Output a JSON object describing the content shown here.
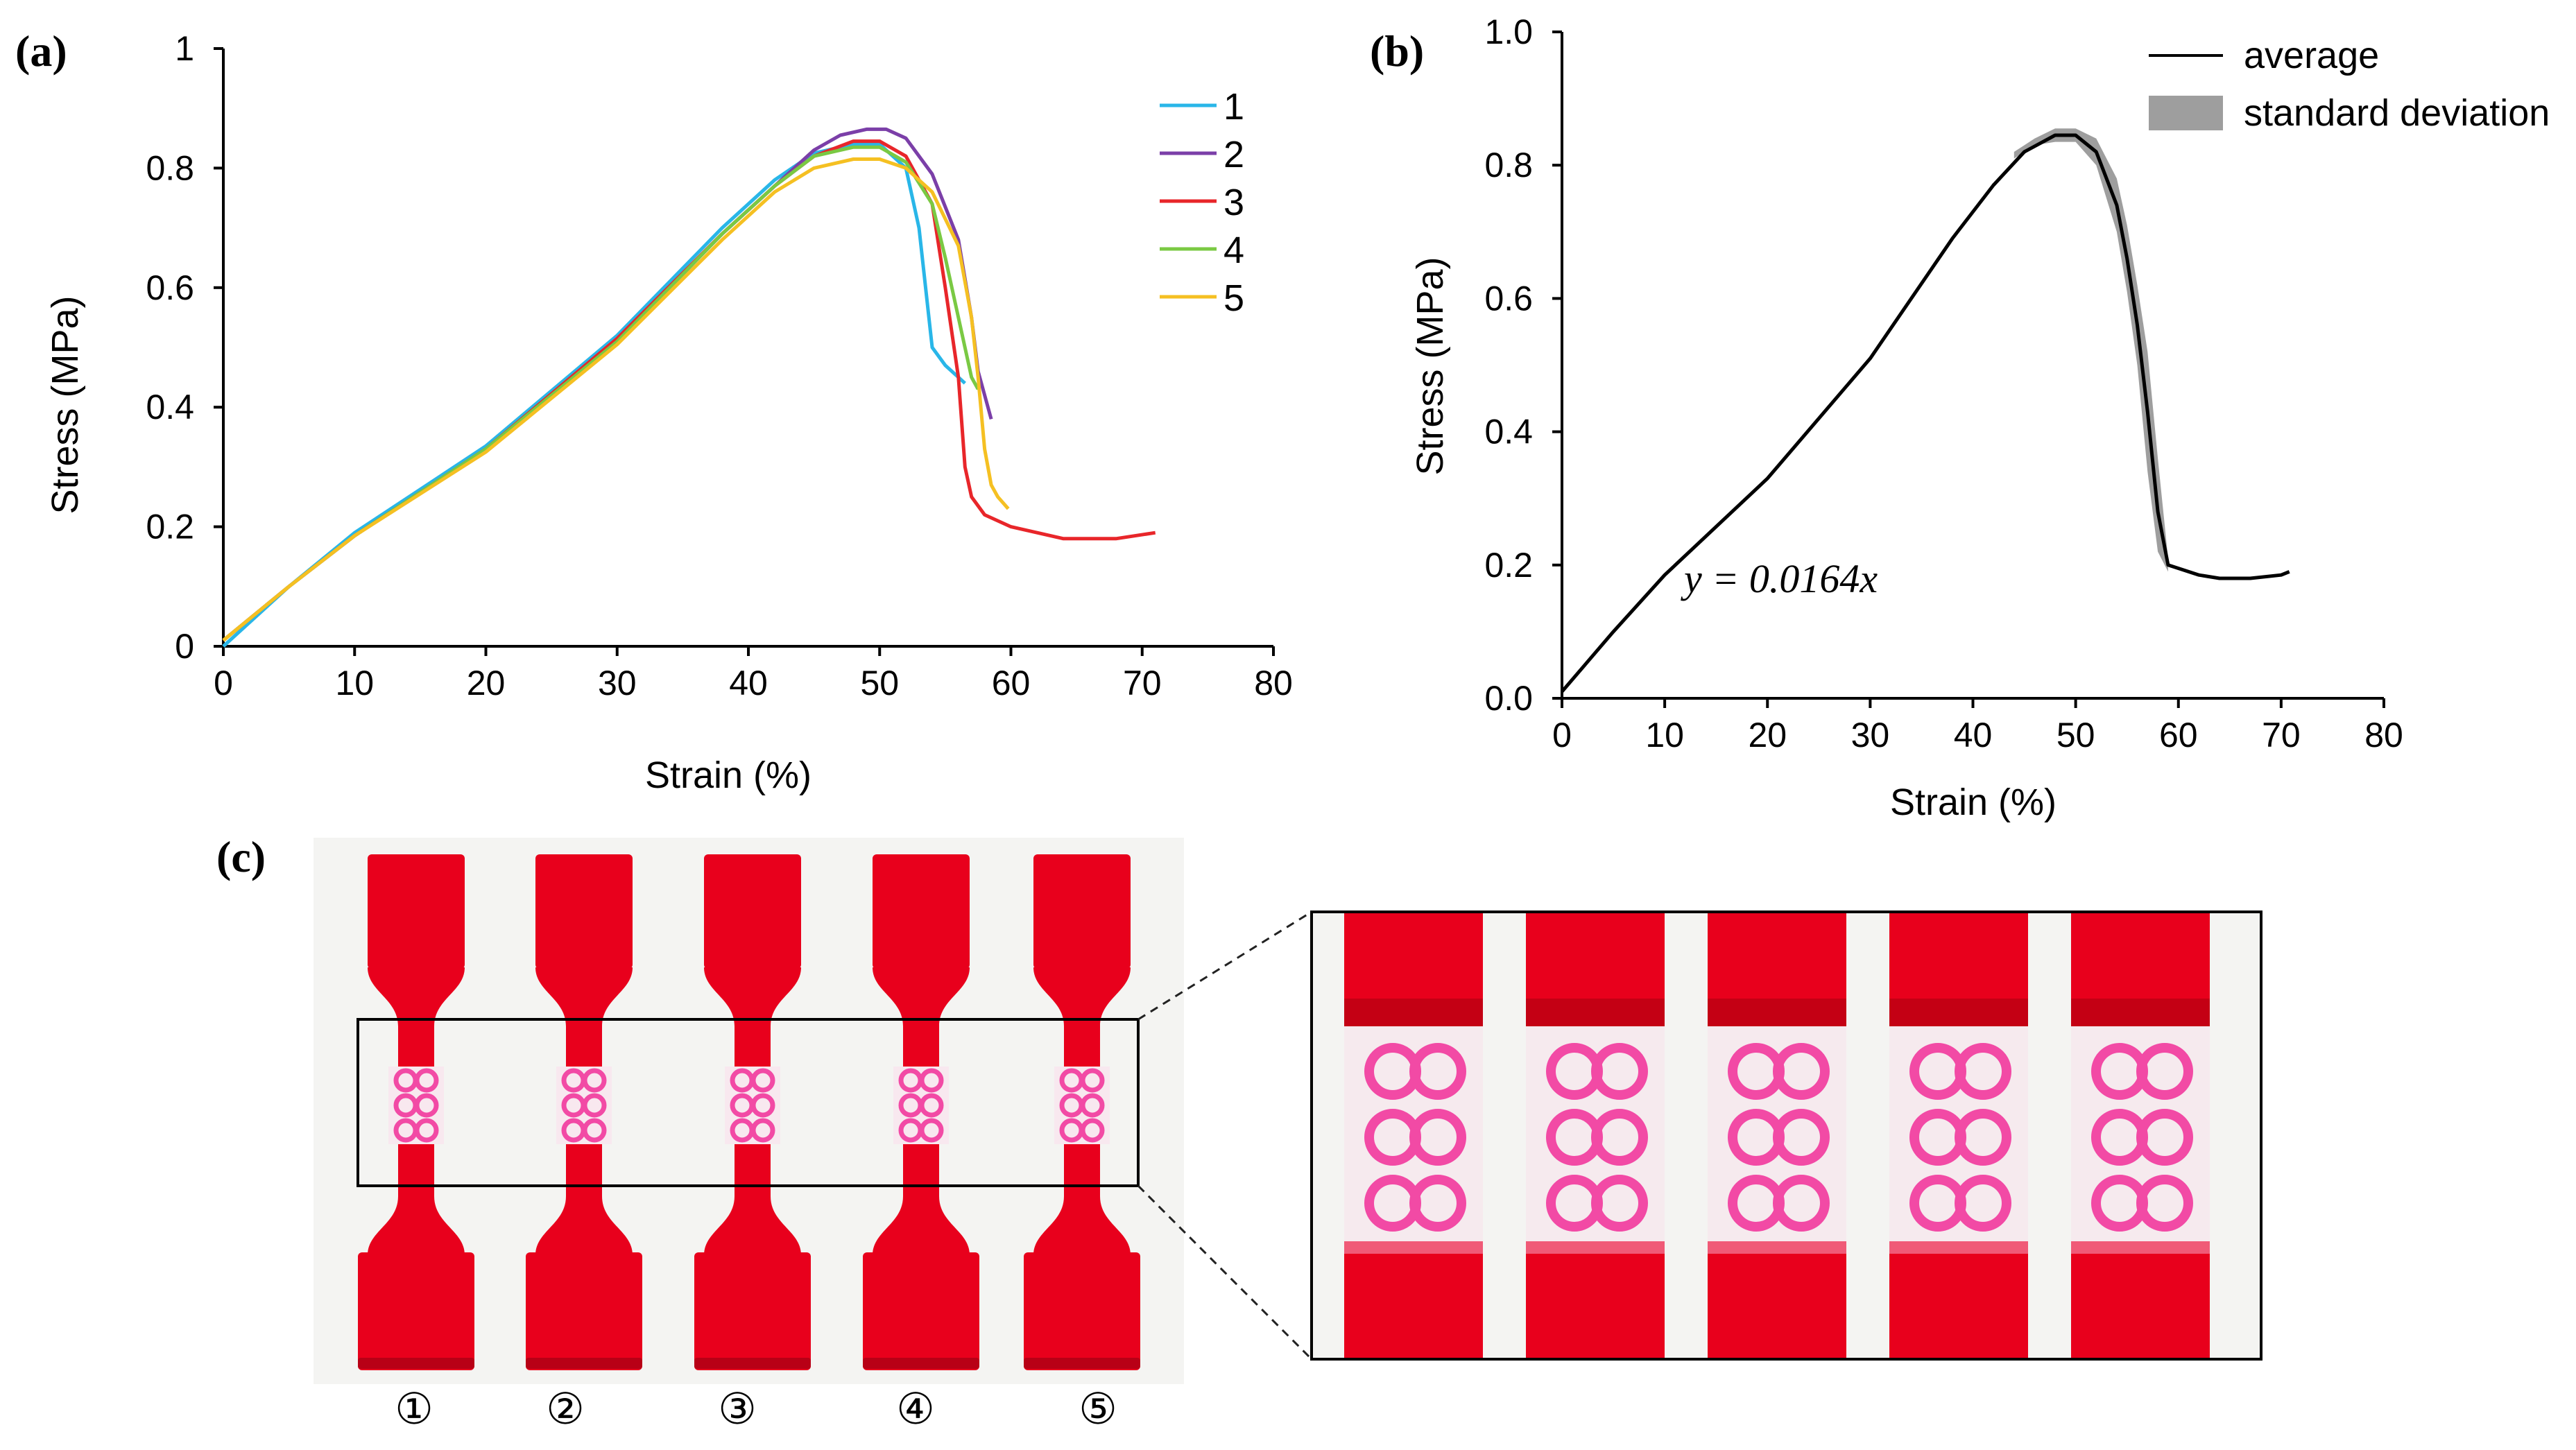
{
  "panels": {
    "a": "(a)",
    "b": "(b)",
    "c": "(c)"
  },
  "chart_data": [
    {
      "type": "line",
      "title": "",
      "xlabel": "Strain (%)",
      "ylabel": "Stress (MPa)",
      "xlim": [
        0,
        80
      ],
      "ylim": [
        0,
        1
      ],
      "x_ticks": [
        0,
        10,
        20,
        30,
        40,
        50,
        60,
        70,
        80
      ],
      "x_tick_labels": [
        "0",
        "10",
        "20",
        "30",
        "40",
        "50",
        "60",
        "70",
        "80"
      ],
      "y_ticks": [
        0,
        0.2,
        0.4,
        0.6,
        0.8,
        1
      ],
      "y_tick_labels": [
        "0",
        "0.2",
        "0.4",
        "0.6",
        "0.8",
        "1"
      ],
      "legend_position": "top-right",
      "series": [
        {
          "name": "1",
          "color": "#29b6e8",
          "points": [
            [
              0,
              0
            ],
            [
              5,
              0.1
            ],
            [
              10,
              0.19
            ],
            [
              20,
              0.335
            ],
            [
              30,
              0.52
            ],
            [
              38,
              0.7
            ],
            [
              42,
              0.78
            ],
            [
              45,
              0.825
            ],
            [
              48,
              0.84
            ],
            [
              50,
              0.84
            ],
            [
              52,
              0.8
            ],
            [
              53,
              0.7
            ],
            [
              53.5,
              0.6
            ],
            [
              54,
              0.5
            ],
            [
              55,
              0.47
            ],
            [
              56.5,
              0.44
            ]
          ]
        },
        {
          "name": "2",
          "color": "#7b3fa8",
          "points": [
            [
              0,
              0.01
            ],
            [
              5,
              0.1
            ],
            [
              10,
              0.185
            ],
            [
              20,
              0.33
            ],
            [
              30,
              0.51
            ],
            [
              38,
              0.69
            ],
            [
              42,
              0.77
            ],
            [
              45,
              0.83
            ],
            [
              47,
              0.855
            ],
            [
              49,
              0.865
            ],
            [
              50.5,
              0.865
            ],
            [
              52,
              0.85
            ],
            [
              54,
              0.79
            ],
            [
              56,
              0.68
            ],
            [
              57,
              0.55
            ],
            [
              57.5,
              0.46
            ],
            [
              58.5,
              0.38
            ]
          ]
        },
        {
          "name": "3",
          "color": "#e8262a",
          "points": [
            [
              0,
              0.01
            ],
            [
              5,
              0.1
            ],
            [
              10,
              0.185
            ],
            [
              20,
              0.33
            ],
            [
              30,
              0.515
            ],
            [
              38,
              0.69
            ],
            [
              42,
              0.77
            ],
            [
              45,
              0.82
            ],
            [
              48,
              0.845
            ],
            [
              50,
              0.845
            ],
            [
              52,
              0.82
            ],
            [
              54,
              0.74
            ],
            [
              55,
              0.6
            ],
            [
              56,
              0.45
            ],
            [
              56.5,
              0.3
            ],
            [
              57,
              0.25
            ],
            [
              58,
              0.22
            ],
            [
              60,
              0.2
            ],
            [
              62,
              0.19
            ],
            [
              64,
              0.18
            ],
            [
              68,
              0.18
            ],
            [
              71,
              0.19
            ]
          ]
        },
        {
          "name": "4",
          "color": "#7ac943",
          "points": [
            [
              0,
              0.01
            ],
            [
              5,
              0.1
            ],
            [
              10,
              0.185
            ],
            [
              20,
              0.33
            ],
            [
              30,
              0.51
            ],
            [
              38,
              0.69
            ],
            [
              42,
              0.77
            ],
            [
              45,
              0.82
            ],
            [
              48,
              0.835
            ],
            [
              50,
              0.835
            ],
            [
              52,
              0.81
            ],
            [
              54,
              0.74
            ],
            [
              55,
              0.65
            ],
            [
              56,
              0.55
            ],
            [
              57,
              0.45
            ],
            [
              57.5,
              0.43
            ]
          ]
        },
        {
          "name": "5",
          "color": "#f5c022",
          "points": [
            [
              0,
              0.01
            ],
            [
              5,
              0.1
            ],
            [
              10,
              0.185
            ],
            [
              20,
              0.325
            ],
            [
              30,
              0.505
            ],
            [
              38,
              0.68
            ],
            [
              42,
              0.76
            ],
            [
              45,
              0.8
            ],
            [
              48,
              0.815
            ],
            [
              50,
              0.815
            ],
            [
              52,
              0.8
            ],
            [
              54,
              0.76
            ],
            [
              56,
              0.67
            ],
            [
              57,
              0.55
            ],
            [
              57.5,
              0.45
            ],
            [
              58,
              0.33
            ],
            [
              58.5,
              0.27
            ],
            [
              59,
              0.25
            ],
            [
              59.8,
              0.23
            ]
          ]
        }
      ],
      "legend": [
        "1",
        "2",
        "3",
        "4",
        "5"
      ]
    },
    {
      "type": "line",
      "title": "",
      "xlabel": "Strain (%)",
      "ylabel": "Stress (MPa)",
      "xlim": [
        0,
        80
      ],
      "ylim": [
        0,
        1
      ],
      "x_ticks": [
        0,
        10,
        20,
        30,
        40,
        50,
        60,
        70,
        80
      ],
      "x_tick_labels": [
        "0",
        "10",
        "20",
        "30",
        "40",
        "50",
        "60",
        "70",
        "80"
      ],
      "y_ticks": [
        0,
        0.2,
        0.4,
        0.6,
        0.8,
        1
      ],
      "y_tick_labels": [
        "0.0",
        "0.2",
        "0.4",
        "0.6",
        "0.8",
        "1.0"
      ],
      "legend_position": "top-right",
      "legend": [
        "average",
        "standard deviation"
      ],
      "annotation": "y = 0.0164x",
      "average": {
        "name": "average",
        "color": "#000000",
        "points": [
          [
            0,
            0.01
          ],
          [
            5,
            0.1
          ],
          [
            10,
            0.185
          ],
          [
            20,
            0.33
          ],
          [
            30,
            0.51
          ],
          [
            38,
            0.69
          ],
          [
            42,
            0.77
          ],
          [
            45,
            0.82
          ],
          [
            48,
            0.845
          ],
          [
            50,
            0.845
          ],
          [
            52,
            0.82
          ],
          [
            54,
            0.74
          ],
          [
            55,
            0.66
          ],
          [
            56,
            0.56
          ],
          [
            57,
            0.43
          ],
          [
            58,
            0.28
          ],
          [
            59,
            0.2
          ],
          [
            62,
            0.185
          ],
          [
            64,
            0.18
          ],
          [
            67,
            0.18
          ],
          [
            70,
            0.185
          ],
          [
            70.8,
            0.19
          ]
        ]
      },
      "std_band": {
        "name": "standard deviation",
        "color": "#9e9e9e",
        "upper": [
          [
            44,
            0.82
          ],
          [
            46,
            0.84
          ],
          [
            48,
            0.855
          ],
          [
            50,
            0.855
          ],
          [
            52,
            0.84
          ],
          [
            54,
            0.78
          ],
          [
            55,
            0.71
          ],
          [
            56,
            0.62
          ],
          [
            57,
            0.52
          ],
          [
            58,
            0.36
          ],
          [
            59,
            0.21
          ]
        ],
        "lower": [
          [
            44,
            0.81
          ],
          [
            46,
            0.83
          ],
          [
            48,
            0.835
          ],
          [
            50,
            0.835
          ],
          [
            52,
            0.8
          ],
          [
            54,
            0.7
          ],
          [
            55,
            0.61
          ],
          [
            56,
            0.5
          ],
          [
            57,
            0.34
          ],
          [
            58,
            0.22
          ],
          [
            59,
            0.19
          ]
        ]
      }
    }
  ],
  "photo": {
    "specimen_numbers": [
      "①",
      "②",
      "③",
      "④",
      "⑤"
    ],
    "colors": {
      "body": "#e8001c",
      "pattern": "#f24aa5",
      "background": "#f4f4f2"
    }
  }
}
